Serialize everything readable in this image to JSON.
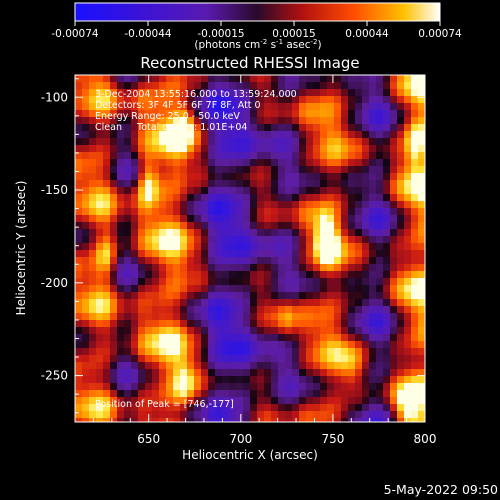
{
  "chart_data": {
    "type": "heatmap",
    "title": "Reconstructed RHESSI Image",
    "xlabel": "Heliocentric X (arcsec)",
    "ylabel": "Heliocentric Y (arcsec)",
    "xlim": [
      610,
      800
    ],
    "ylim": [
      -275,
      -88
    ],
    "x_ticks": [
      650,
      700,
      750,
      800
    ],
    "y_ticks": [
      -100,
      -150,
      -200,
      -250
    ],
    "colorbar": {
      "label_html": "(photons cm<sup>−2</sup> s<sup>−1</sup> asec<sup>−2</sup>)",
      "label": "(photons cm-2 s-1 asec-2)",
      "ticks": [
        "-0.00074",
        "-0.00044",
        "-0.00015",
        "0.00015",
        "0.00044",
        "0.00074"
      ],
      "range": [
        -0.00074,
        0.00074
      ]
    },
    "annotations": [
      "3-Dec-2004 13:55:16.000 to 13:59:24.000",
      "Detectors: 3F 4F 5F 6F 7F 8F, Att 0",
      "Energy Range: 25.0 - 50.0 keV",
      "Clean     Total counts: 1.01E+04"
    ],
    "peak_label": "Position of Peak = [746,-177]",
    "peak": [
      746,
      -177
    ],
    "field_bands": [
      {
        "x": 612,
        "value": 0.35
      },
      {
        "x": 625,
        "value": 0.55
      },
      {
        "x": 637,
        "value": -0.1
      },
      {
        "x": 650,
        "value": 0.45
      },
      {
        "x": 663,
        "value": 0.7
      },
      {
        "x": 676,
        "value": 0.2
      },
      {
        "x": 688,
        "value": -0.5
      },
      {
        "x": 700,
        "value": -0.4
      },
      {
        "x": 712,
        "value": 0.1
      },
      {
        "x": 725,
        "value": -0.2
      },
      {
        "x": 738,
        "value": 0.3
      },
      {
        "x": 750,
        "value": 0.55
      },
      {
        "x": 762,
        "value": 0.1
      },
      {
        "x": 775,
        "value": -0.3
      },
      {
        "x": 787,
        "value": 0.35
      },
      {
        "x": 797,
        "value": 0.75
      }
    ],
    "hotspots": [
      {
        "x": 746,
        "y": -177,
        "value": 1.0
      },
      {
        "x": 650,
        "y": -145,
        "value": 0.85
      },
      {
        "x": 627,
        "y": -185,
        "value": 0.6
      },
      {
        "x": 670,
        "y": -115,
        "value": 0.7
      },
      {
        "x": 670,
        "y": -255,
        "value": 0.6
      },
      {
        "x": 725,
        "y": -220,
        "value": 0.55
      },
      {
        "x": 795,
        "y": -125,
        "value": 0.75
      },
      {
        "x": 790,
        "y": -270,
        "value": 0.65
      },
      {
        "x": 760,
        "y": -248,
        "value": 0.45
      }
    ]
  },
  "footer": {
    "timestamp": "5-May-2022 09:50"
  }
}
